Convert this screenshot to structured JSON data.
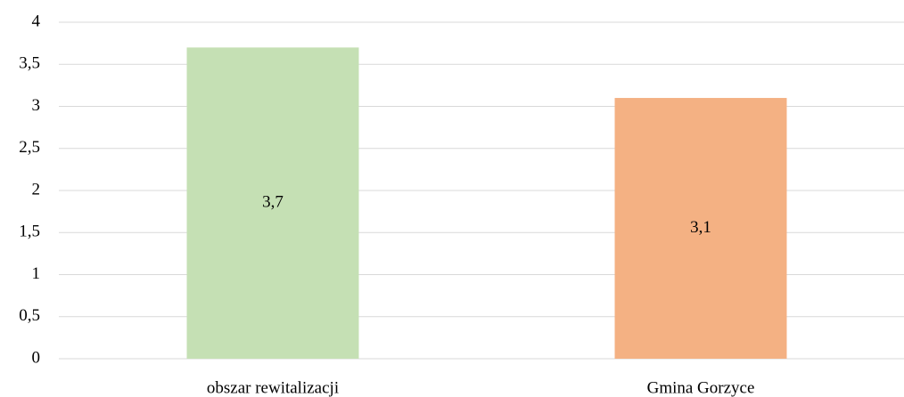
{
  "chart_data": {
    "type": "bar",
    "categories": [
      "obszar rewitalizacji",
      "Gmina Gorzyce"
    ],
    "values": [
      3.7,
      3.1
    ],
    "value_labels": [
      "3,7",
      "3,1"
    ],
    "colors": [
      "#c5e0b4",
      "#f4b183"
    ],
    "ylim": [
      0,
      4
    ],
    "yticks": [
      0,
      {
        "value": 0.5,
        "label": "0,5"
      },
      1,
      {
        "value": 1.5,
        "label": "1,5"
      },
      2,
      {
        "value": 2.5,
        "label": "2,5"
      },
      3,
      {
        "value": 3.5,
        "label": "3,5"
      },
      4
    ],
    "grid": true
  }
}
